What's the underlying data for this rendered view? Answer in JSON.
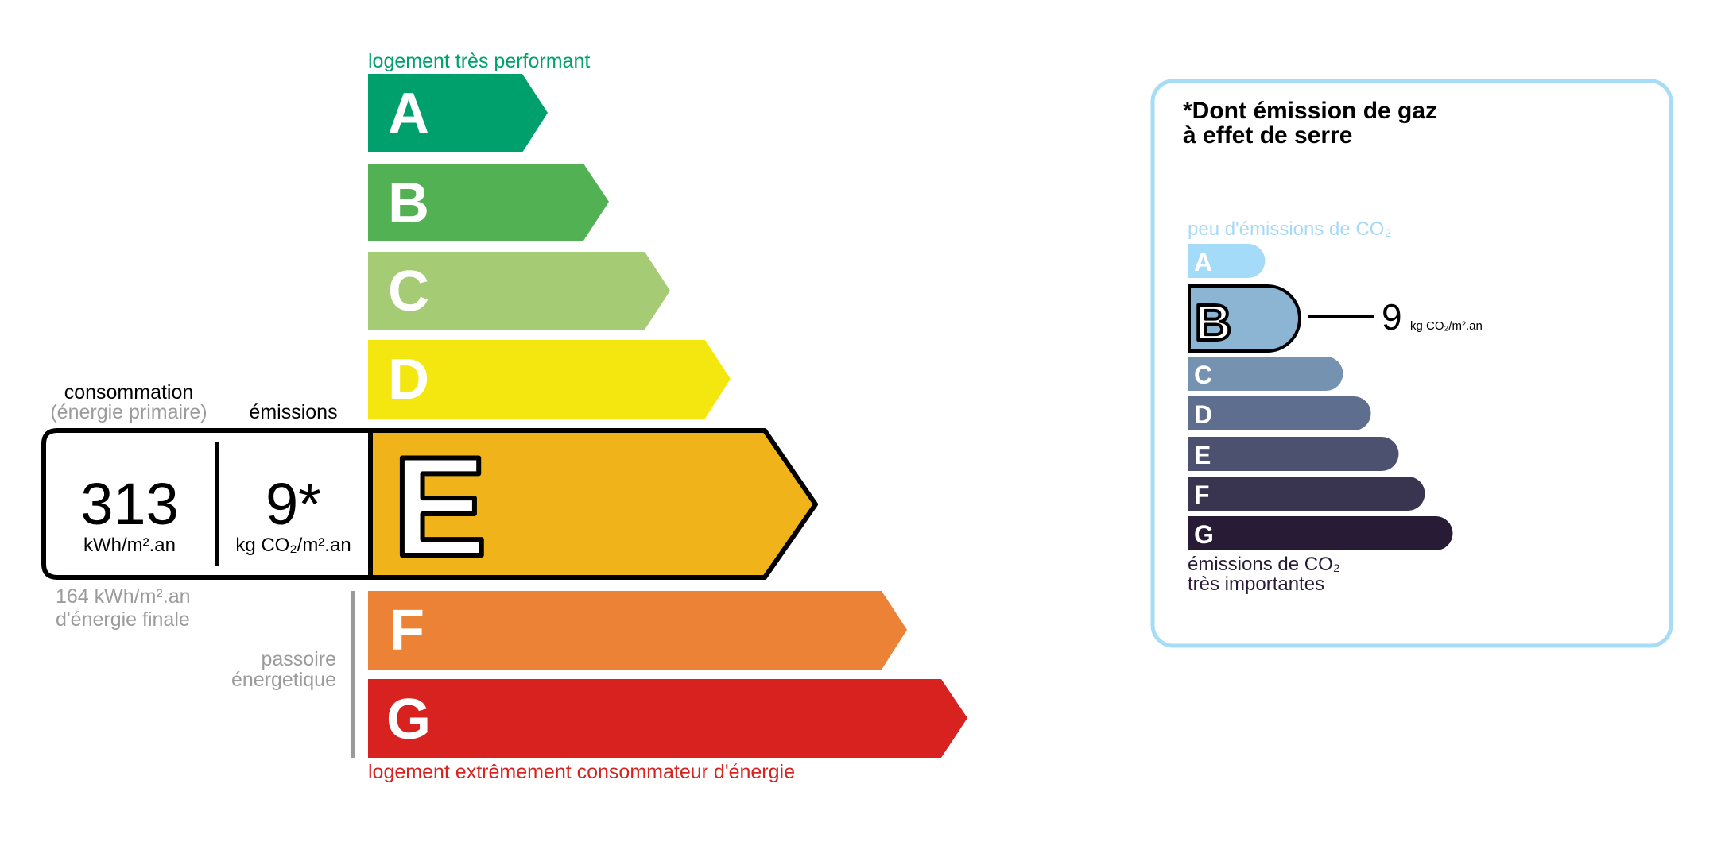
{
  "energy": {
    "top_label": "logement très performant",
    "bottom_label": "logement extrêmement consommateur d'énergie",
    "classes": [
      "A",
      "B",
      "C",
      "D",
      "E",
      "F",
      "G"
    ],
    "colors": [
      "#00a06d",
      "#52b153",
      "#a5cc74",
      "#f4e70f",
      "#f0b41a",
      "#ec8235",
      "#d7221f"
    ],
    "current_class": "E",
    "consumption_label": "consommation",
    "consumption_sublabel": "(énergie primaire)",
    "emissions_label": "émissions",
    "consumption_value": "313",
    "consumption_unit": "kWh/m².an",
    "emissions_value": "9*",
    "emissions_unit": "kg CO₂/m².an",
    "final_energy_value": "164 kWh/m².an",
    "final_energy_label": "d'énergie finale",
    "passoire_line1": "passoire",
    "passoire_line2": "énergetique"
  },
  "ges": {
    "title_line1": "*Dont émission de gaz",
    "title_line2": "à effet de serre",
    "top_label": "peu d'émissions de CO₂",
    "bottom_label_line1": "émissions de CO₂",
    "bottom_label_line2": "très importantes",
    "classes": [
      "A",
      "B",
      "C",
      "D",
      "E",
      "F",
      "G"
    ],
    "colors": [
      "#a4dbf8",
      "#8cb4d3",
      "#7692b1",
      "#5e6e8e",
      "#4d5170",
      "#393551",
      "#281b35"
    ],
    "current_class": "B",
    "value": "9",
    "unit": "kg CO₂/m².an",
    "border_color": "#a6dcf5"
  }
}
